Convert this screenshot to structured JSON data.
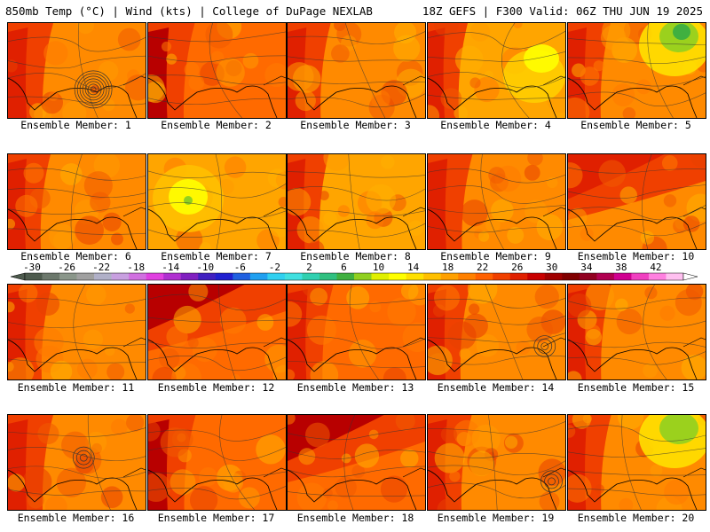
{
  "header": {
    "left": "850mb Temp (°C) | Wind (kts) | College of DuPage NEXLAB",
    "right": "18Z GEFS | F300 Valid: 06Z THU JUN 19 2025"
  },
  "label_prefix": "Ensemble Member: ",
  "members": [
    {
      "n": "1",
      "warm": 0.7,
      "hot": "left",
      "cool": null,
      "low": [
        0.62,
        0.7
      ]
    },
    {
      "n": "2",
      "warm": 0.75,
      "hot": "left",
      "cool": null,
      "low": null
    },
    {
      "n": "3",
      "warm": 0.62,
      "hot": "left",
      "cool": null,
      "low": null
    },
    {
      "n": "4",
      "warm": 0.5,
      "hot": "left",
      "cool": "right",
      "low": null
    },
    {
      "n": "5",
      "warm": 0.6,
      "hot": "left",
      "cool": "top-right",
      "low": null
    },
    {
      "n": "6",
      "warm": 0.6,
      "hot": "left",
      "cool": null,
      "low": null
    },
    {
      "n": "7",
      "warm": 0.45,
      "hot": "none",
      "cool": "left",
      "low": null
    },
    {
      "n": "8",
      "warm": 0.55,
      "hot": "left",
      "cool": null,
      "low": null
    },
    {
      "n": "9",
      "warm": 0.68,
      "hot": "left",
      "cool": null,
      "low": null
    },
    {
      "n": "10",
      "warm": 0.7,
      "hot": "top",
      "cool": null,
      "low": null
    },
    {
      "n": "11",
      "warm": 0.65,
      "hot": "left",
      "cool": null,
      "low": null
    },
    {
      "n": "12",
      "warm": 0.75,
      "hot": "top",
      "cool": null,
      "low": null
    },
    {
      "n": "13",
      "warm": 0.72,
      "hot": "left",
      "cool": null,
      "low": null
    },
    {
      "n": "14",
      "warm": 0.6,
      "hot": "left",
      "cool": null,
      "low": [
        0.85,
        0.65
      ]
    },
    {
      "n": "15",
      "warm": 0.62,
      "hot": "left",
      "cool": null,
      "low": null
    },
    {
      "n": "16",
      "warm": 0.7,
      "hot": "left",
      "cool": null,
      "low": [
        0.55,
        0.45
      ]
    },
    {
      "n": "17",
      "warm": 0.78,
      "hot": "left",
      "cool": null,
      "low": null
    },
    {
      "n": "18",
      "warm": 0.8,
      "hot": "top",
      "cool": null,
      "low": null
    },
    {
      "n": "19",
      "warm": 0.65,
      "hot": "left",
      "cool": null,
      "low": [
        0.9,
        0.7
      ]
    },
    {
      "n": "20",
      "warm": 0.62,
      "hot": "left",
      "cool": "top-right",
      "low": null
    }
  ],
  "colorbar": {
    "ticks": [
      "-30",
      "-26",
      "-22",
      "-18",
      "-14",
      "-10",
      "-6",
      "-2",
      "2",
      "6",
      "10",
      "14",
      "18",
      "22",
      "26",
      "30",
      "34",
      "38",
      "42"
    ],
    "colors": [
      "#4d5a4d",
      "#6c786c",
      "#8a968a",
      "#a0a0a0",
      "#b0b0c8",
      "#c8a0e0",
      "#d070e0",
      "#e040e0",
      "#b030d0",
      "#8020c0",
      "#4020c0",
      "#2020d0",
      "#2060e0",
      "#20a0f0",
      "#30d0f0",
      "#40e0e0",
      "#30d0b0",
      "#30c080",
      "#40b040",
      "#90d020",
      "#e0f000",
      "#ffff00",
      "#ffe000",
      "#ffc000",
      "#ffa000",
      "#ff8000",
      "#ff6000",
      "#f04000",
      "#e02000",
      "#c80000",
      "#a00000",
      "#800000",
      "#900020",
      "#b00050",
      "#d00090",
      "#f040c0",
      "#ff80e0",
      "#ffc0f0"
    ]
  }
}
